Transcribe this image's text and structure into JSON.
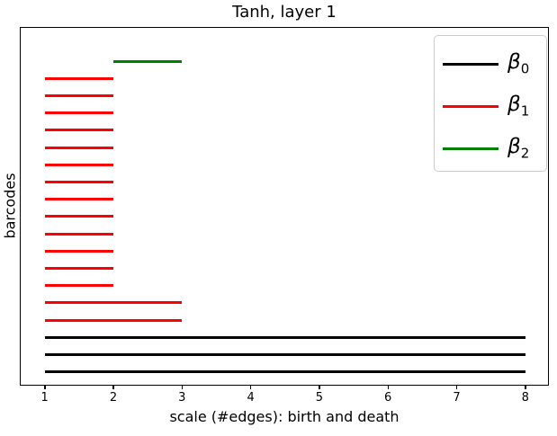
{
  "title": "Tanh, layer 1",
  "legend": [
    {
      "base": "β",
      "sub": "0",
      "color": "#000000"
    },
    {
      "base": "β",
      "sub": "1",
      "color": "#ff0000"
    },
    {
      "base": "β",
      "sub": "2",
      "color": "#008000"
    }
  ],
  "chart_data": {
    "type": "bar",
    "subtype": "persistence-barcode-intervals",
    "title": "Tanh, layer 1",
    "xlabel": "scale (#edges): birth and death",
    "ylabel": "barcodes",
    "xticks": [
      1,
      2,
      3,
      4,
      5,
      6,
      7,
      8
    ],
    "xlim": [
      0.65,
      8.33
    ],
    "grid": false,
    "legend_position": "upper right",
    "series_colors": {
      "beta0": "#000000",
      "beta1": "#ff0000",
      "beta2": "#008000"
    },
    "bars": [
      {
        "series": "beta2",
        "birth": 2,
        "death": 3
      },
      {
        "series": "beta1",
        "birth": 1,
        "death": 2
      },
      {
        "series": "beta1",
        "birth": 1,
        "death": 2
      },
      {
        "series": "beta1",
        "birth": 1,
        "death": 2
      },
      {
        "series": "beta1",
        "birth": 1,
        "death": 2
      },
      {
        "series": "beta1",
        "birth": 1,
        "death": 2
      },
      {
        "series": "beta1",
        "birth": 1,
        "death": 2
      },
      {
        "series": "beta1",
        "birth": 1,
        "death": 2
      },
      {
        "series": "beta1",
        "birth": 1,
        "death": 2
      },
      {
        "series": "beta1",
        "birth": 1,
        "death": 2
      },
      {
        "series": "beta1",
        "birth": 1,
        "death": 2
      },
      {
        "series": "beta1",
        "birth": 1,
        "death": 2
      },
      {
        "series": "beta1",
        "birth": 1,
        "death": 2
      },
      {
        "series": "beta1",
        "birth": 1,
        "death": 2
      },
      {
        "series": "beta1",
        "birth": 1,
        "death": 3
      },
      {
        "series": "beta1",
        "birth": 1,
        "death": 3
      },
      {
        "series": "beta0",
        "birth": 1,
        "death": 8
      },
      {
        "series": "beta0",
        "birth": 1,
        "death": 8
      },
      {
        "series": "beta0",
        "birth": 1,
        "death": 8
      }
    ]
  }
}
